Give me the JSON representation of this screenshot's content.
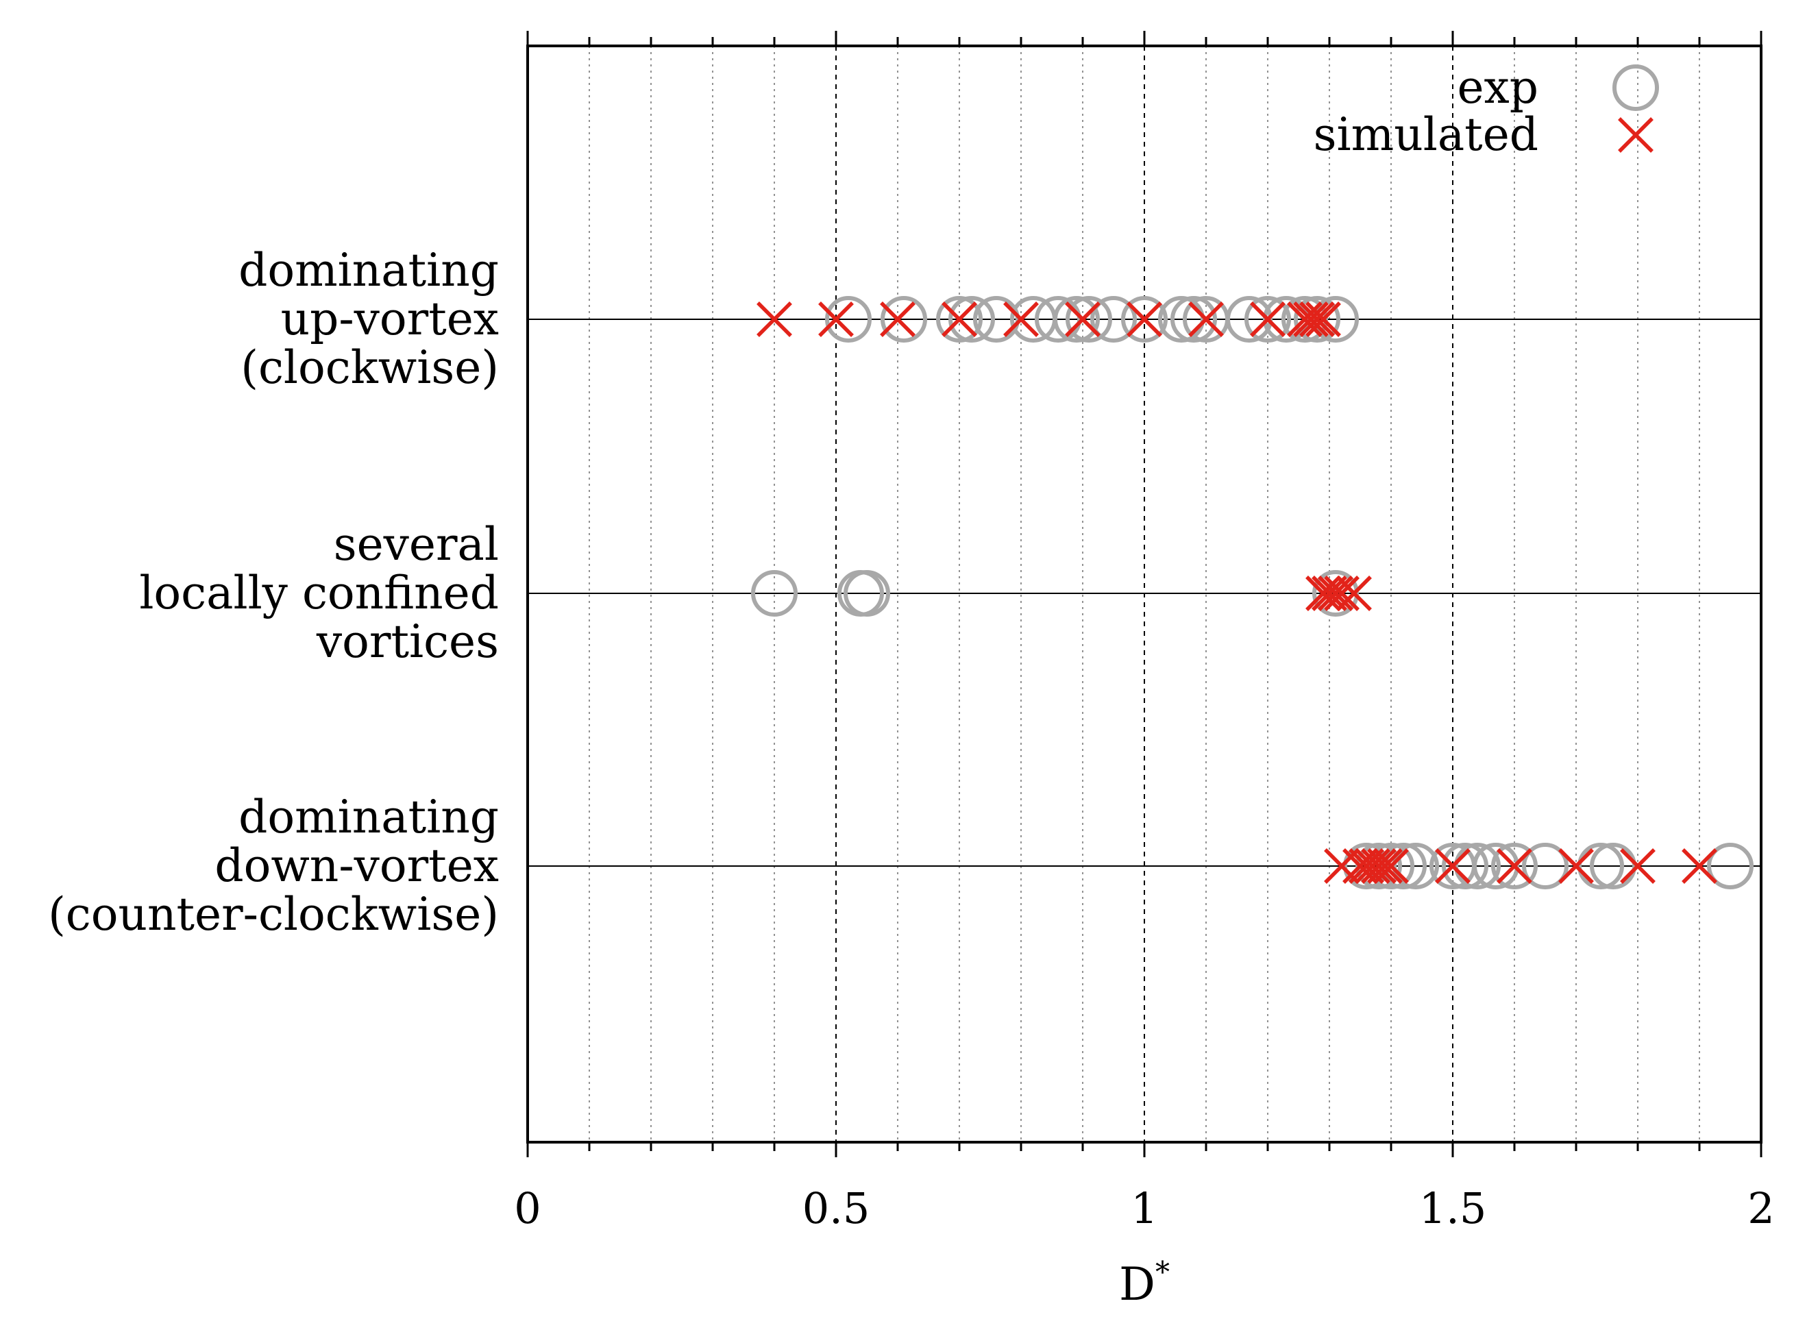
{
  "chart_data": {
    "type": "scatter",
    "xlabel": "D",
    "xlabel_superscript": "*",
    "xlim": [
      0,
      2
    ],
    "x_ticks": [
      0,
      0.5,
      1,
      1.5,
      2
    ],
    "x_tick_labels": [
      "0",
      "0.5",
      "1",
      "1.5",
      "2"
    ],
    "minor_grid_step": 0.1,
    "categories": [
      {
        "id": "up",
        "label_lines": [
          "dominating",
          "up-vortex",
          "(clockwise)"
        ]
      },
      {
        "id": "local",
        "label_lines": [
          "several",
          "locally confined",
          "vortices"
        ]
      },
      {
        "id": "down",
        "label_lines": [
          "dominating",
          "down-vortex",
          "(counter-clockwise)"
        ]
      }
    ],
    "legend": {
      "position": "top-right"
    },
    "series": [
      {
        "name": "exp",
        "marker": "open-circle",
        "color": "#a8a8a8",
        "points": {
          "up": [
            0.52,
            0.61,
            0.7,
            0.72,
            0.76,
            0.82,
            0.86,
            0.89,
            0.91,
            0.95,
            1.0,
            1.06,
            1.08,
            1.1,
            1.17,
            1.2,
            1.23,
            1.26,
            1.28,
            1.31
          ],
          "local": [
            0.4,
            0.54,
            0.55,
            1.31
          ],
          "down": [
            1.36,
            1.38,
            1.4,
            1.42,
            1.44,
            1.5,
            1.52,
            1.54,
            1.57,
            1.6,
            1.65,
            1.74,
            1.76,
            1.95
          ]
        }
      },
      {
        "name": "simulated",
        "marker": "x-cross",
        "color": "#e2231a",
        "points": {
          "up": [
            0.4,
            0.5,
            0.6,
            0.7,
            0.8,
            0.9,
            1.0,
            1.1,
            1.2,
            1.26,
            1.27,
            1.28,
            1.29
          ],
          "local": [
            1.29,
            1.3,
            1.31,
            1.32,
            1.34
          ],
          "down": [
            1.32,
            1.35,
            1.36,
            1.37,
            1.38,
            1.39,
            1.4,
            1.5,
            1.6,
            1.7,
            1.8,
            1.9
          ]
        }
      }
    ]
  }
}
